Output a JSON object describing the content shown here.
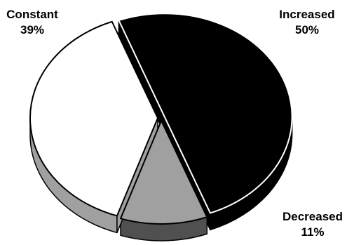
{
  "chart_data": {
    "type": "pie",
    "style": "3d-exploded",
    "slices": [
      {
        "label": "Increased",
        "value": 50,
        "value_label": "50%",
        "color": "#000000"
      },
      {
        "label": "Decreased",
        "value": 11,
        "value_label": "11%",
        "color": "#a0a0a0"
      },
      {
        "label": "Constant",
        "value": 39,
        "value_label": "39%",
        "color": "#ffffff"
      }
    ],
    "side_colors": {
      "Increased": "#000000",
      "Decreased": "#505050",
      "Constant": "#a0a0a0"
    },
    "legend": "none",
    "title": ""
  }
}
